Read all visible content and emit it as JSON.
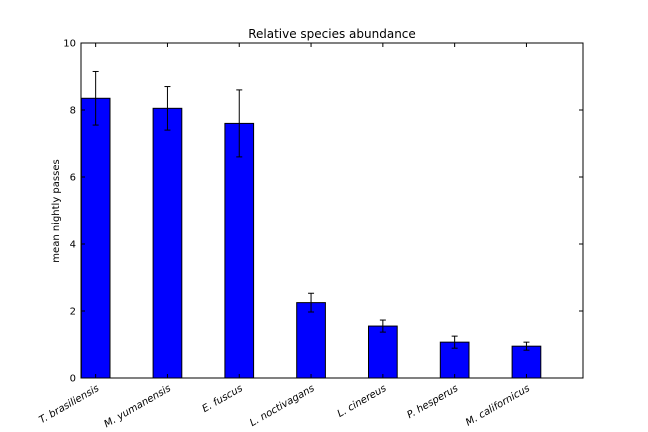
{
  "chart_data": {
    "type": "bar",
    "title": "Relative species abundance",
    "xlabel": "",
    "ylabel": "mean nightly passes",
    "ylim": [
      0,
      10
    ],
    "yticks": [
      0,
      2,
      4,
      6,
      8,
      10
    ],
    "grid": false,
    "bar_color": "#0000ff",
    "categories": [
      "T. brasiliensis",
      "M. yumanensis",
      "E. fuscus",
      "L. noctivagans",
      "L. cinereus",
      "P. hesperus",
      "M. californicus"
    ],
    "values": [
      8.35,
      8.05,
      7.6,
      2.25,
      1.55,
      1.07,
      0.95
    ],
    "error": [
      0.8,
      0.65,
      1.0,
      0.28,
      0.18,
      0.18,
      0.12
    ]
  }
}
